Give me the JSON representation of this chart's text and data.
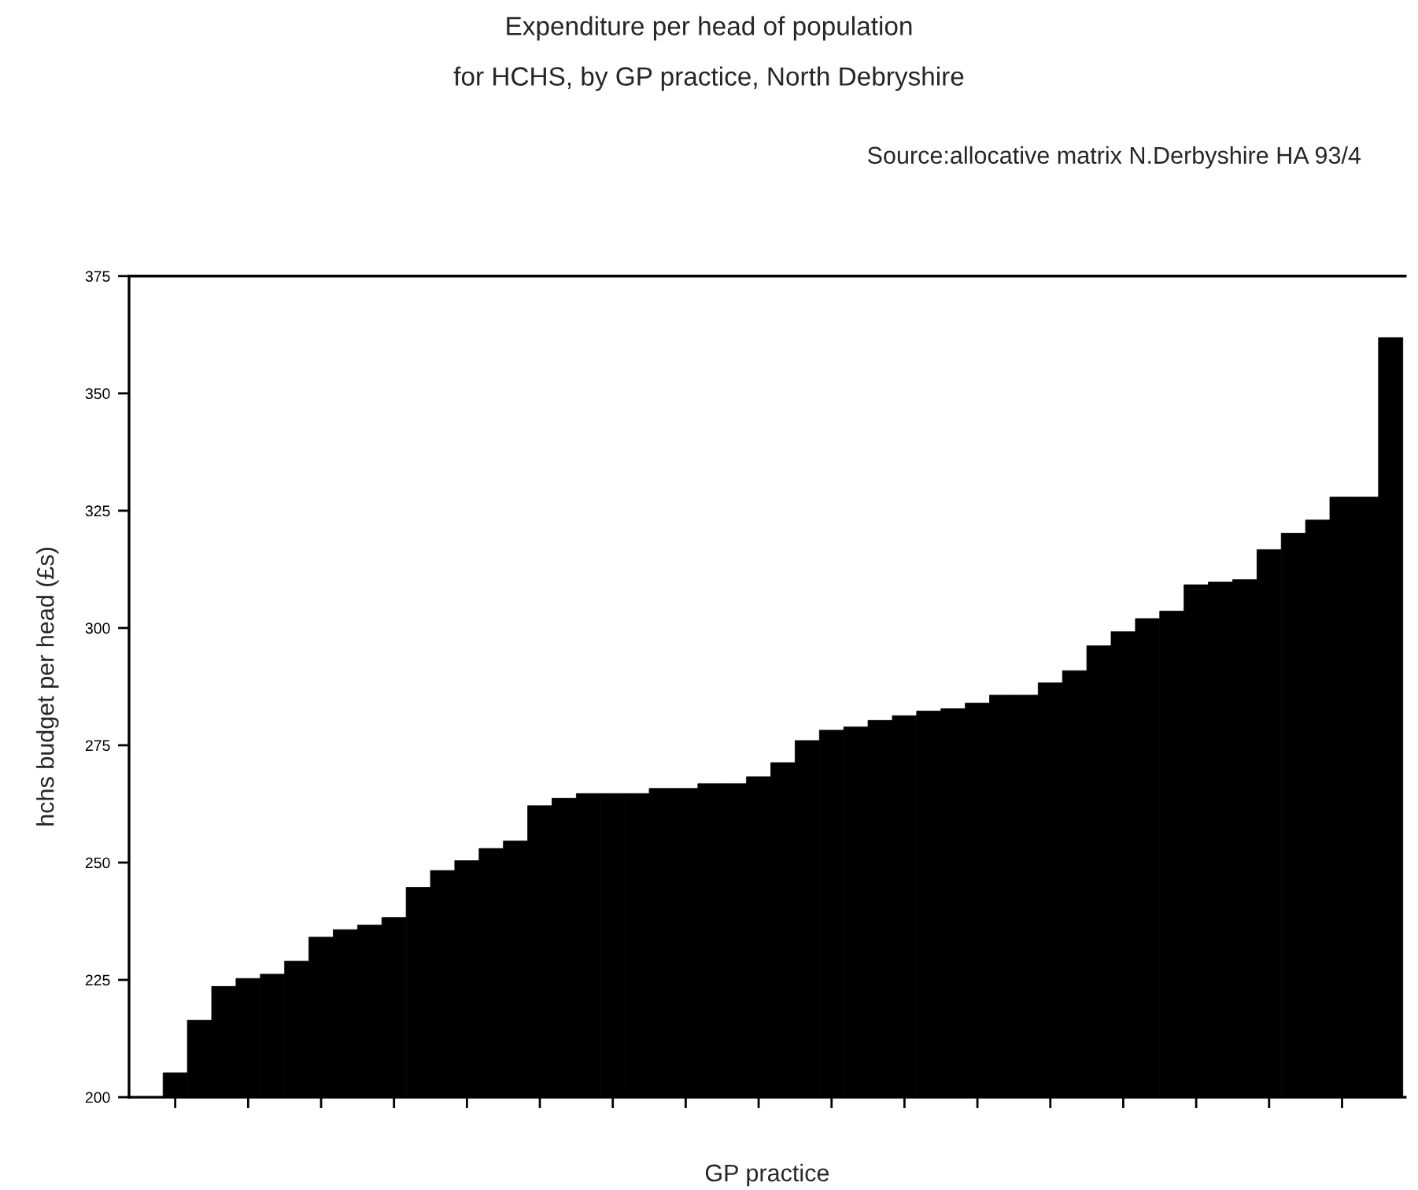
{
  "chart_data": {
    "type": "bar",
    "title": "Expenditure per head of population",
    "subtitle": "for HCHS, by GP practice, North Debryshire",
    "annotations": [
      "Source:allocative matrix N.Derbyshire HA 93/4"
    ],
    "xlabel": "GP practice",
    "ylabel": "hchs budget per head (£s)",
    "categories": [
      null,
      null,
      null,
      null,
      null,
      null,
      null,
      null,
      null,
      null,
      null,
      null,
      null,
      null,
      null,
      null,
      null,
      null,
      null,
      null,
      null,
      null,
      null,
      null,
      null,
      null,
      null,
      null,
      null,
      null,
      null,
      null,
      null,
      null,
      null,
      null,
      null,
      null,
      null,
      null,
      null,
      null,
      null,
      null,
      null,
      null,
      null,
      null,
      null,
      null,
      null
    ],
    "values": [
      205.2,
      216.4,
      223.6,
      225.3,
      226.2,
      229.0,
      234.1,
      235.7,
      236.7,
      238.3,
      244.7,
      248.3,
      250.4,
      253.0,
      254.6,
      262.1,
      263.7,
      264.7,
      264.7,
      264.7,
      265.8,
      265.8,
      266.8,
      266.8,
      268.3,
      271.3,
      276.0,
      278.2,
      278.9,
      280.3,
      281.3,
      282.3,
      282.8,
      284.0,
      285.7,
      285.7,
      288.3,
      290.9,
      296.2,
      299.2,
      302.0,
      303.6,
      309.2,
      309.8,
      310.3,
      316.7,
      320.2,
      323.0,
      327.9,
      327.9,
      361.9
    ],
    "color": "#000000",
    "ylim": [
      200,
      375
    ],
    "yticks": [
      200,
      225,
      250,
      275,
      300,
      325,
      350,
      375
    ],
    "grid": false
  }
}
